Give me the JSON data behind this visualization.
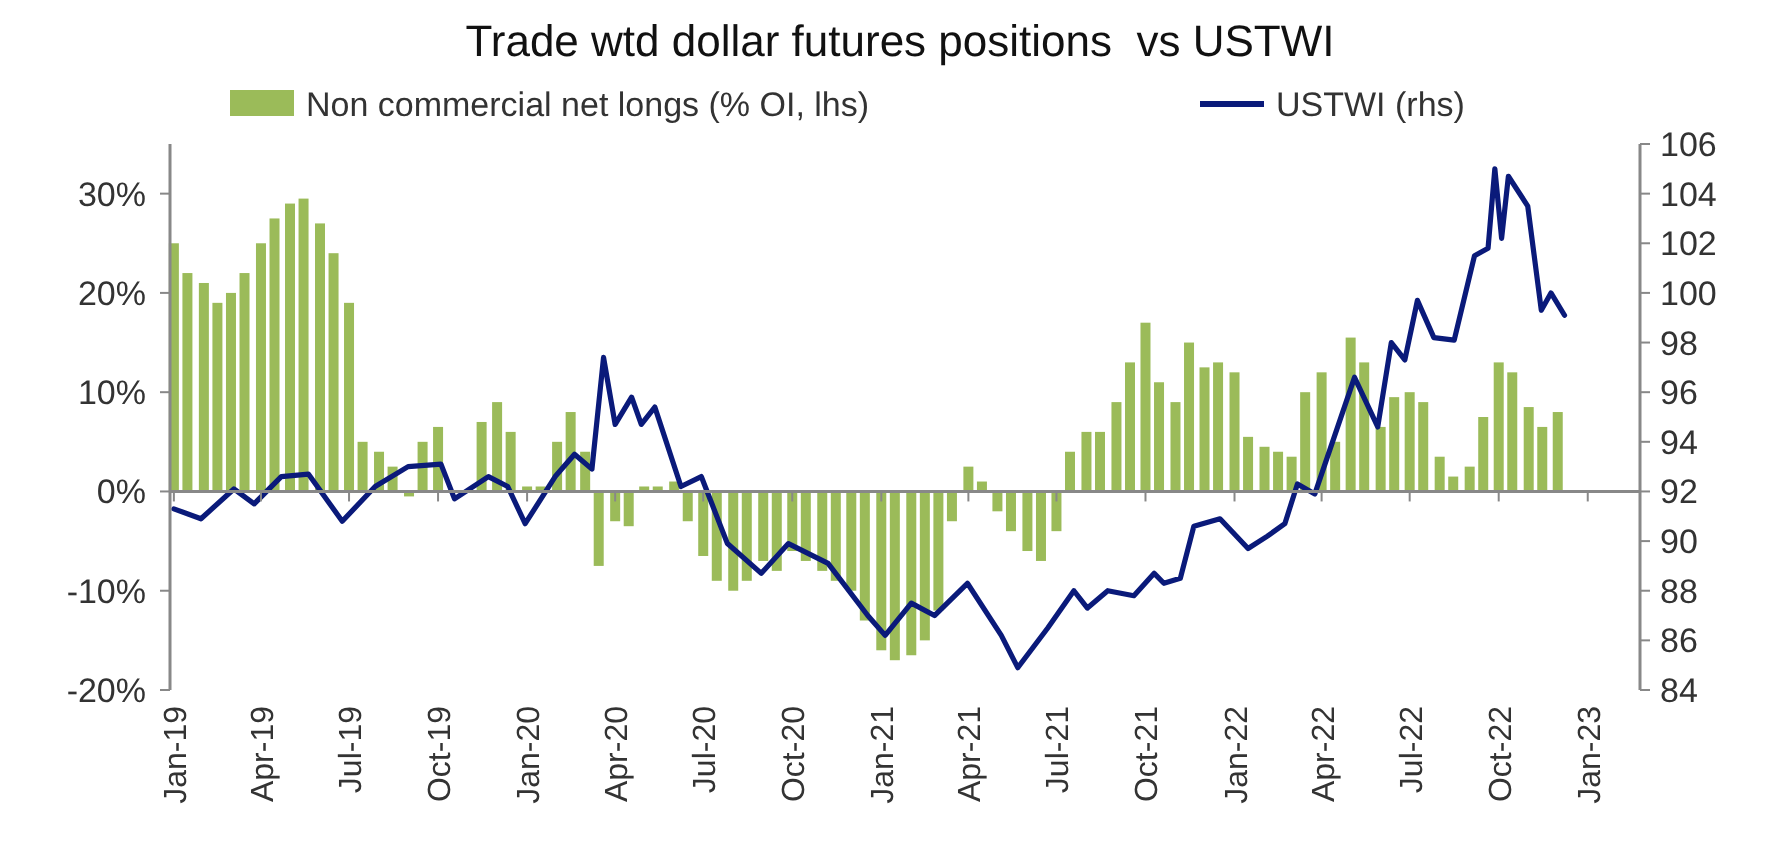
{
  "chart_data": {
    "type": "bar",
    "title": "Trade wtd dollar futures positions  vs USTWI",
    "legend": "top",
    "xlim": [
      "2018-12-28",
      "2023-02-24"
    ],
    "xticks": [
      {
        "value": "2019-01-01",
        "label": "Jan-19"
      },
      {
        "value": "2019-04-01",
        "label": "Apr-19"
      },
      {
        "value": "2019-07-01",
        "label": "Jul-19"
      },
      {
        "value": "2019-10-01",
        "label": "Oct-19"
      },
      {
        "value": "2020-01-01",
        "label": "Jan-20"
      },
      {
        "value": "2020-04-01",
        "label": "Apr-20"
      },
      {
        "value": "2020-07-01",
        "label": "Jul-20"
      },
      {
        "value": "2020-10-01",
        "label": "Oct-20"
      },
      {
        "value": "2021-01-01",
        "label": "Jan-21"
      },
      {
        "value": "2021-04-01",
        "label": "Apr-21"
      },
      {
        "value": "2021-07-01",
        "label": "Jul-21"
      },
      {
        "value": "2021-10-01",
        "label": "Oct-21"
      },
      {
        "value": "2022-01-01",
        "label": "Jan-22"
      },
      {
        "value": "2022-04-01",
        "label": "Apr-22"
      },
      {
        "value": "2022-07-01",
        "label": "Jul-22"
      },
      {
        "value": "2022-10-01",
        "label": "Oct-22"
      },
      {
        "value": "2023-01-01",
        "label": "Jan-23"
      }
    ],
    "ylim": [
      -20,
      35
    ],
    "yticks": [
      {
        "value": -20,
        "label": "-20%"
      },
      {
        "value": -10,
        "label": "-10%"
      },
      {
        "value": 0,
        "label": "0%"
      },
      {
        "value": 10,
        "label": "10%"
      },
      {
        "value": 20,
        "label": "20%"
      },
      {
        "value": 30,
        "label": "30%"
      }
    ],
    "y2lim": [
      84,
      106
    ],
    "y2ticks": [
      84,
      86,
      88,
      90,
      92,
      94,
      96,
      98,
      100,
      102,
      104,
      106
    ],
    "series": [
      {
        "name": "Non commercial net longs (% OI, lhs)",
        "color": "#9bbb59",
        "x": [
          "2019-01-01",
          "2019-01-15",
          "2019-02-01",
          "2019-02-15",
          "2019-03-01",
          "2019-03-15",
          "2019-04-01",
          "2019-04-15",
          "2019-05-01",
          "2019-05-15",
          "2019-06-01",
          "2019-06-15",
          "2019-07-01",
          "2019-07-15",
          "2019-08-01",
          "2019-08-15",
          "2019-09-01",
          "2019-09-15",
          "2019-10-01",
          "2019-11-15",
          "2019-12-01",
          "2019-12-15",
          "2020-01-01",
          "2020-01-15",
          "2020-02-01",
          "2020-02-15",
          "2020-03-01",
          "2020-03-15",
          "2020-04-01",
          "2020-04-15",
          "2020-05-01",
          "2020-05-15",
          "2020-06-01",
          "2020-06-15",
          "2020-07-01",
          "2020-07-15",
          "2020-08-01",
          "2020-08-15",
          "2020-09-01",
          "2020-09-15",
          "2020-10-01",
          "2020-10-15",
          "2020-11-01",
          "2020-11-15",
          "2020-12-01",
          "2020-12-15",
          "2021-01-01",
          "2021-01-15",
          "2021-02-01",
          "2021-02-15",
          "2021-03-01",
          "2021-03-15",
          "2021-04-01",
          "2021-04-15",
          "2021-05-01",
          "2021-05-15",
          "2021-06-01",
          "2021-06-15",
          "2021-07-01",
          "2021-07-15",
          "2021-08-01",
          "2021-08-15",
          "2021-09-01",
          "2021-09-15",
          "2021-10-01",
          "2021-10-15",
          "2021-11-01",
          "2021-11-15",
          "2021-12-01",
          "2021-12-15",
          "2022-01-01",
          "2022-01-15",
          "2022-02-01",
          "2022-02-15",
          "2022-03-01",
          "2022-03-15",
          "2022-04-01",
          "2022-04-15",
          "2022-05-01",
          "2022-05-15",
          "2022-06-01",
          "2022-06-15",
          "2022-07-01",
          "2022-07-15",
          "2022-08-01",
          "2022-08-15",
          "2022-09-01",
          "2022-09-15",
          "2022-10-01",
          "2022-10-15",
          "2022-11-01",
          "2022-11-15",
          "2022-12-01"
        ],
        "values": [
          25,
          22,
          21,
          19,
          20,
          22,
          25,
          27.5,
          29,
          29.5,
          27,
          24,
          19,
          5,
          4,
          2.5,
          -0.5,
          5,
          6.5,
          7,
          9,
          6,
          0.5,
          0.5,
          5,
          8,
          4,
          -7.5,
          -3,
          -3.5,
          0.5,
          0.5,
          1,
          -3,
          -6.5,
          -9,
          -10,
          -9,
          -7,
          -8,
          -6,
          -7,
          -8,
          -9,
          -10,
          -13,
          -16,
          -17,
          -16.5,
          -15,
          -12,
          -3,
          2.5,
          1,
          -2,
          -4,
          -6,
          -7,
          -4,
          4,
          6,
          6,
          9,
          13,
          17,
          11,
          9,
          15,
          12.5,
          13,
          12,
          5.5,
          4.5,
          4,
          3.5,
          10,
          12,
          5,
          15.5,
          13,
          6.5,
          9.5,
          10,
          9,
          3.5,
          1.5,
          2.5,
          7.5,
          13,
          12,
          8.5,
          6.5,
          8
        ]
      },
      {
        "name": "USTWI (rhs)",
        "type": "line",
        "axis": "y2",
        "color": "#0a1a7a",
        "x": [
          "2019-01-01",
          "2019-01-29",
          "2019-03-04",
          "2019-03-25",
          "2019-04-22",
          "2019-05-20",
          "2019-06-24",
          "2019-07-28",
          "2019-08-31",
          "2019-10-04",
          "2019-10-18",
          "2019-11-22",
          "2019-12-12",
          "2019-12-30",
          "2020-01-30",
          "2020-02-19",
          "2020-03-08",
          "2020-03-20",
          "2020-04-01",
          "2020-04-18",
          "2020-04-28",
          "2020-05-12",
          "2020-06-08",
          "2020-06-29",
          "2020-07-26",
          "2020-08-30",
          "2020-09-27",
          "2020-11-07",
          "2020-12-18",
          "2021-01-05",
          "2021-02-01",
          "2021-02-25",
          "2021-03-31",
          "2021-05-05",
          "2021-05-22",
          "2021-06-22",
          "2021-07-19",
          "2021-08-02",
          "2021-08-23",
          "2021-09-19",
          "2021-10-10",
          "2021-10-20",
          "2021-11-06",
          "2021-11-20",
          "2021-12-17",
          "2022-01-15",
          "2022-02-04",
          "2022-02-22",
          "2022-03-07",
          "2022-03-25",
          "2022-05-05",
          "2022-05-29",
          "2022-06-12",
          "2022-06-26",
          "2022-07-09",
          "2022-07-26",
          "2022-08-16",
          "2022-09-06",
          "2022-09-20",
          "2022-09-27",
          "2022-10-04",
          "2022-10-11",
          "2022-10-31",
          "2022-11-14",
          "2022-11-24",
          "2022-12-08"
        ],
        "values": [
          91.3,
          90.9,
          92.1,
          91.5,
          92.6,
          92.7,
          90.8,
          92.2,
          93.0,
          93.1,
          91.7,
          92.6,
          92.2,
          90.7,
          92.6,
          93.5,
          92.9,
          97.4,
          94.7,
          95.8,
          94.7,
          95.4,
          92.2,
          92.6,
          89.9,
          88.7,
          89.9,
          89.1,
          87.0,
          86.2,
          87.5,
          87.0,
          88.3,
          86.2,
          84.9,
          86.5,
          88.0,
          87.3,
          88.0,
          87.8,
          88.7,
          88.3,
          88.5,
          90.6,
          90.9,
          89.7,
          90.2,
          90.7,
          92.3,
          91.9,
          96.6,
          94.6,
          98.0,
          97.3,
          99.7,
          98.2,
          98.1,
          101.5,
          101.8,
          105.0,
          102.2,
          104.7,
          103.5,
          99.3,
          100.0,
          99.1
        ]
      }
    ]
  }
}
